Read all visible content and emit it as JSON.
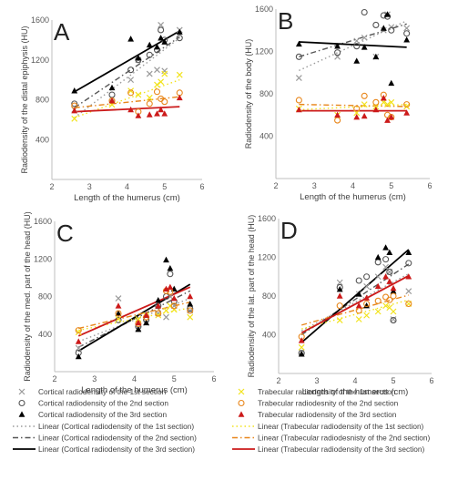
{
  "chart_data": [
    {
      "type": "scatter",
      "panel_letter": "A",
      "xlabel": "Length of the humerus (cm)",
      "ylabel": "Radiodensity of the distal epiphysis (HU)",
      "xlim": [
        2,
        6
      ],
      "ylim": [
        0,
        1600
      ],
      "xticks": [
        2,
        3,
        4,
        5,
        6
      ],
      "yticks": [
        400,
        800,
        1200,
        1600
      ],
      "series": [
        {
          "key": "cort1",
          "x": [
            2.6,
            3.6,
            4.1,
            4.3,
            4.6,
            4.8,
            4.9,
            5.0,
            5.4
          ],
          "y": [
            700,
            810,
            1000,
            1200,
            1060,
            1100,
            1550,
            1090,
            1500
          ]
        },
        {
          "key": "cort2",
          "x": [
            2.6,
            3.6,
            4.1,
            4.3,
            4.6,
            4.8,
            4.9,
            5.0,
            5.4
          ],
          "y": [
            760,
            850,
            1100,
            1200,
            1250,
            1300,
            1500,
            1400,
            1420
          ]
        },
        {
          "key": "cort3",
          "x": [
            2.6,
            3.6,
            4.1,
            4.3,
            4.6,
            4.8,
            4.9,
            5.0,
            5.4
          ],
          "y": [
            890,
            920,
            1410,
            1220,
            1350,
            1330,
            1420,
            1380,
            1480
          ]
        },
        {
          "key": "trab1",
          "x": [
            2.6,
            3.6,
            4.1,
            4.3,
            4.6,
            4.8,
            4.9,
            5.0,
            5.4
          ],
          "y": [
            610,
            750,
            890,
            850,
            820,
            950,
            980,
            1060,
            1050
          ]
        },
        {
          "key": "trab2",
          "x": [
            2.6,
            3.6,
            4.1,
            4.3,
            4.6,
            4.8,
            4.9,
            5.0,
            5.4
          ],
          "y": [
            740,
            790,
            870,
            680,
            760,
            880,
            810,
            780,
            870
          ]
        },
        {
          "key": "trab3",
          "x": [
            2.6,
            3.6,
            4.1,
            4.3,
            4.6,
            4.8,
            4.9,
            5.0,
            5.4
          ],
          "y": [
            690,
            790,
            700,
            640,
            650,
            660,
            700,
            660,
            820
          ]
        }
      ],
      "trendlines": [
        {
          "key": "cort1",
          "x": [
            2.6,
            5.4
          ],
          "y": [
            620,
            1420
          ]
        },
        {
          "key": "cort2",
          "x": [
            2.6,
            5.4
          ],
          "y": [
            720,
            1430
          ]
        },
        {
          "key": "cort3",
          "x": [
            2.6,
            5.4
          ],
          "y": [
            880,
            1490
          ]
        },
        {
          "key": "trab1",
          "x": [
            2.6,
            5.4
          ],
          "y": [
            620,
            1000
          ]
        },
        {
          "key": "trab2",
          "x": [
            2.6,
            5.4
          ],
          "y": [
            720,
            830
          ]
        },
        {
          "key": "trab3",
          "x": [
            2.6,
            5.4
          ],
          "y": [
            680,
            730
          ]
        }
      ]
    },
    {
      "type": "scatter",
      "panel_letter": "B",
      "xlabel": "Length of the humerus (cm)",
      "ylabel": "Radiodensity of the body (HU)",
      "xlim": [
        2,
        6
      ],
      "ylim": [
        0,
        1600
      ],
      "xticks": [
        2,
        3,
        4,
        5,
        6
      ],
      "yticks": [
        400,
        800,
        1200,
        1600
      ],
      "series": [
        {
          "key": "cort1",
          "x": [
            2.6,
            3.6,
            4.1,
            4.3,
            4.6,
            4.8,
            4.9,
            5.0,
            5.4
          ],
          "y": [
            950,
            1150,
            1300,
            1330,
            1150,
            1400,
            1550,
            1430,
            1420
          ]
        },
        {
          "key": "cort2",
          "x": [
            2.6,
            3.6,
            4.1,
            4.3,
            4.6,
            4.8,
            4.9,
            5.0,
            5.4
          ],
          "y": [
            1150,
            1190,
            1250,
            1570,
            1450,
            1540,
            1530,
            1400,
            1370
          ]
        },
        {
          "key": "cort3",
          "x": [
            2.6,
            3.6,
            4.1,
            4.3,
            4.6,
            4.8,
            4.9,
            5.0,
            5.4
          ],
          "y": [
            1270,
            1250,
            1110,
            1240,
            1150,
            1420,
            1550,
            900,
            1310
          ]
        },
        {
          "key": "trab1",
          "x": [
            2.6,
            3.6,
            4.1,
            4.3,
            4.6,
            4.8,
            4.9,
            5.0,
            5.4
          ],
          "y": [
            660,
            600,
            620,
            700,
            680,
            720,
            700,
            720,
            680
          ]
        },
        {
          "key": "trab2",
          "x": [
            2.6,
            3.6,
            4.1,
            4.3,
            4.6,
            4.8,
            4.9,
            5.0,
            5.4
          ],
          "y": [
            740,
            550,
            660,
            780,
            720,
            790,
            600,
            580,
            700
          ]
        },
        {
          "key": "trab3",
          "x": [
            2.6,
            3.6,
            4.1,
            4.3,
            4.6,
            4.8,
            4.9,
            5.0,
            5.4
          ],
          "y": [
            650,
            600,
            580,
            590,
            650,
            760,
            550,
            580,
            620
          ]
        }
      ],
      "trendlines": [
        {
          "key": "cort1",
          "x": [
            2.6,
            5.4
          ],
          "y": [
            1020,
            1490
          ]
        },
        {
          "key": "cort2",
          "x": [
            2.6,
            5.4
          ],
          "y": [
            1150,
            1460
          ]
        },
        {
          "key": "cort3",
          "x": [
            2.6,
            5.4
          ],
          "y": [
            1290,
            1240
          ]
        },
        {
          "key": "trab1",
          "x": [
            2.6,
            5.4
          ],
          "y": [
            650,
            700
          ]
        },
        {
          "key": "trab2",
          "x": [
            2.6,
            5.4
          ],
          "y": [
            700,
            680
          ]
        },
        {
          "key": "trab3",
          "x": [
            2.6,
            5.4
          ],
          "y": [
            640,
            640
          ]
        }
      ]
    },
    {
      "type": "scatter",
      "panel_letter": "C",
      "xlabel": "Length of the humerus (cm)",
      "ylabel": "Radiodensity of the med. part of the head (HU)",
      "xlim": [
        2,
        6
      ],
      "ylim": [
        0,
        1600
      ],
      "xticks": [
        2,
        3,
        4,
        5,
        6
      ],
      "yticks": [
        400,
        800,
        1200,
        1600
      ],
      "series": [
        {
          "key": "cort1",
          "x": [
            2.6,
            3.6,
            4.1,
            4.3,
            4.6,
            4.8,
            4.9,
            5.0,
            5.4
          ],
          "y": [
            250,
            780,
            460,
            520,
            620,
            580,
            800,
            700,
            650
          ]
        },
        {
          "key": "cort2",
          "x": [
            2.6,
            3.6,
            4.1,
            4.3,
            4.6,
            4.8,
            4.9,
            5.0,
            5.4
          ],
          "y": [
            200,
            550,
            480,
            550,
            700,
            800,
            1040,
            750,
            670
          ]
        },
        {
          "key": "cort3",
          "x": [
            2.6,
            3.6,
            4.1,
            4.3,
            4.6,
            4.8,
            4.9,
            5.0,
            5.4
          ],
          "y": [
            160,
            620,
            450,
            520,
            760,
            1190,
            1100,
            880,
            720
          ]
        },
        {
          "key": "trab1",
          "x": [
            2.6,
            3.6,
            4.1,
            4.3,
            4.6,
            4.8,
            4.9,
            5.0,
            5.4
          ],
          "y": [
            420,
            560,
            560,
            600,
            600,
            650,
            700,
            660,
            580
          ]
        },
        {
          "key": "trab2",
          "x": [
            2.6,
            3.6,
            4.1,
            4.3,
            4.6,
            4.8,
            4.9,
            5.0,
            5.4
          ],
          "y": [
            440,
            620,
            510,
            580,
            620,
            860,
            850,
            700,
            650
          ]
        },
        {
          "key": "trab3",
          "x": [
            2.6,
            3.6,
            4.1,
            4.3,
            4.6,
            4.8,
            4.9,
            5.0,
            5.4
          ],
          "y": [
            320,
            700,
            520,
            600,
            700,
            880,
            900,
            780,
            800
          ]
        }
      ],
      "trendlines": [
        {
          "key": "cort1",
          "x": [
            2.6,
            5.4
          ],
          "y": [
            320,
            780
          ]
        },
        {
          "key": "cort2",
          "x": [
            2.6,
            5.4
          ],
          "y": [
            260,
            860
          ]
        },
        {
          "key": "cort3",
          "x": [
            2.6,
            5.4
          ],
          "y": [
            220,
            930
          ]
        },
        {
          "key": "trab1",
          "x": [
            2.6,
            5.4
          ],
          "y": [
            440,
            680
          ]
        },
        {
          "key": "trab2",
          "x": [
            2.6,
            5.4
          ],
          "y": [
            460,
            740
          ]
        },
        {
          "key": "trab3",
          "x": [
            2.6,
            5.4
          ],
          "y": [
            380,
            900
          ]
        }
      ]
    },
    {
      "type": "scatter",
      "panel_letter": "D",
      "xlabel": "Length of the humerus (cm)",
      "ylabel": "Radiodensity of the lat. part of the head (HU)",
      "xlim": [
        2,
        6
      ],
      "ylim": [
        0,
        1600
      ],
      "xticks": [
        2,
        3,
        4,
        5,
        6
      ],
      "yticks": [
        400,
        800,
        1200,
        1600
      ],
      "series": [
        {
          "key": "cort1",
          "x": [
            2.6,
            3.6,
            4.1,
            4.3,
            4.6,
            4.8,
            4.9,
            5.0,
            5.4
          ],
          "y": [
            220,
            940,
            820,
            900,
            1000,
            1100,
            1050,
            560,
            850
          ]
        },
        {
          "key": "cort2",
          "x": [
            2.6,
            3.6,
            4.1,
            4.3,
            4.6,
            4.8,
            4.9,
            5.0,
            5.4
          ],
          "y": [
            210,
            890,
            960,
            1000,
            1150,
            1180,
            1050,
            550,
            1140
          ]
        },
        {
          "key": "cort3",
          "x": [
            2.6,
            3.6,
            4.1,
            4.3,
            4.6,
            4.8,
            4.9,
            5.0,
            5.4
          ],
          "y": [
            200,
            870,
            820,
            700,
            1200,
            1300,
            1250,
            850,
            1250
          ]
        },
        {
          "key": "trab1",
          "x": [
            2.6,
            3.6,
            4.1,
            4.3,
            4.6,
            4.8,
            4.9,
            5.0,
            5.4
          ],
          "y": [
            270,
            550,
            560,
            600,
            640,
            700,
            680,
            640,
            720
          ]
        },
        {
          "key": "trab2",
          "x": [
            2.6,
            3.6,
            4.1,
            4.3,
            4.6,
            4.8,
            4.9,
            5.0,
            5.4
          ],
          "y": [
            380,
            700,
            650,
            720,
            750,
            790,
            760,
            800,
            720
          ]
        },
        {
          "key": "trab3",
          "x": [
            2.6,
            3.6,
            4.1,
            4.3,
            4.6,
            4.8,
            4.9,
            5.0,
            5.4
          ],
          "y": [
            340,
            800,
            700,
            780,
            900,
            1000,
            950,
            880,
            1000
          ]
        }
      ],
      "trendlines": [
        {
          "key": "cort1",
          "x": [
            2.6,
            5.4
          ],
          "y": [
            440,
            1030
          ]
        },
        {
          "key": "cort2",
          "x": [
            2.6,
            5.4
          ],
          "y": [
            400,
            1130
          ]
        },
        {
          "key": "cort3",
          "x": [
            2.6,
            5.4
          ],
          "y": [
            320,
            1280
          ]
        },
        {
          "key": "trab1",
          "x": [
            2.6,
            5.4
          ],
          "y": [
            460,
            760
          ]
        },
        {
          "key": "trab2",
          "x": [
            2.6,
            5.4
          ],
          "y": [
            500,
            810
          ]
        },
        {
          "key": "trab3",
          "x": [
            2.6,
            5.4
          ],
          "y": [
            420,
            1010
          ]
        }
      ]
    }
  ],
  "styles": {
    "cort1": {
      "marker": "x",
      "color": "#9a9a9a",
      "line_color": "#9a9a9a",
      "dash": "1.5,3"
    },
    "cort2": {
      "marker": "circle",
      "color": "#555555",
      "line_color": "#555555",
      "dash": "6,3,1.5,3"
    },
    "cort3": {
      "marker": "triangle",
      "color": "#000000",
      "line_color": "#000000",
      "dash": ""
    },
    "trab1": {
      "marker": "x",
      "color": "#f2e31c",
      "line_color": "#f2e31c",
      "dash": "1.5,3"
    },
    "trab2": {
      "marker": "circle",
      "color": "#e8861a",
      "line_color": "#e8861a",
      "dash": "6,3,1.5,3"
    },
    "trab3": {
      "marker": "triangle",
      "color": "#cc1a1a",
      "line_color": "#cc1a1a",
      "dash": ""
    }
  },
  "legend": {
    "markers": [
      {
        "key": "cort1",
        "label": "Cortical radiodensity of the 1st section"
      },
      {
        "key": "trab1",
        "label": "Trabecular radiodensity of the 1st section"
      },
      {
        "key": "cort2",
        "label": "Cortical radiodensity of the 2nd section"
      },
      {
        "key": "trab2",
        "label": "Trabecular radiodesnity of the 2nd section"
      },
      {
        "key": "cort3",
        "label": "Cortical radiodensity of the 3rd section"
      },
      {
        "key": "trab3",
        "label": "Trabecular radiodensity of the 3rd section"
      }
    ],
    "lines": [
      {
        "key": "cort1",
        "label": "Linear (Cortical radiodensity of the 1st section)"
      },
      {
        "key": "trab1",
        "label": "Linear (Trabecular radiodensity of the 1st section)"
      },
      {
        "key": "cort2",
        "label": "Linear (Cortical radiodensity of the 2nd section)"
      },
      {
        "key": "trab2",
        "label": "Linear (Trabecular radiodesnisty of the 2nd section)"
      },
      {
        "key": "cort3",
        "label": "Linear (Cortical radiodensity of the 3rd section)"
      },
      {
        "key": "trab3",
        "label": "Linear (Trabecular radiodensity of the 3rd section)"
      }
    ]
  }
}
